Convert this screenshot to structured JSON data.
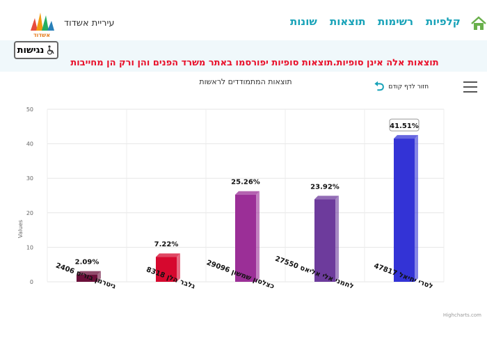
{
  "header": {
    "nav": [
      {
        "label": "קלפיות"
      },
      {
        "label": "רשימות"
      },
      {
        "label": "תוצאות"
      },
      {
        "label": "שונות"
      }
    ],
    "city_name": "עיריית אשדוד",
    "logo_text": "אשדוד"
  },
  "accessibility_label": "נגישות",
  "notice": "תוצאות אלה אינן סופיות.תוצאות סופיות יפורסמו באתר משרד הפנים והן ורק הן מחייבות",
  "back_label": "חזור לדף קודם",
  "credit": "Highcharts.com",
  "colors": {
    "accent": "#17a2b8",
    "notice": "#e8102a"
  },
  "chart_data": {
    "type": "bar",
    "title": "תוצאות המתמודדים לראשות",
    "ylabel": "Values",
    "ylim": [
      0,
      50
    ],
    "yticks": [
      "0",
      "10",
      "20",
      "30",
      "40",
      "50"
    ],
    "categories": [
      "גיטרמן בוריס 2406",
      "גלבר הלן 8318",
      "כצלסון שמשון 29096",
      "לחמני אלי אליאס 27550",
      "לסרי יחיאל 47817"
    ],
    "values": [
      2.09,
      7.22,
      25.26,
      23.92,
      41.51
    ],
    "data_labels": [
      "2.09%",
      "7.22%",
      "25.26%",
      "23.92%",
      "41.51%"
    ],
    "colors": [
      "#6b0f3a",
      "#d6082e",
      "#9b2f97",
      "#6d3b9c",
      "#3333d6"
    ],
    "grid": true
  }
}
